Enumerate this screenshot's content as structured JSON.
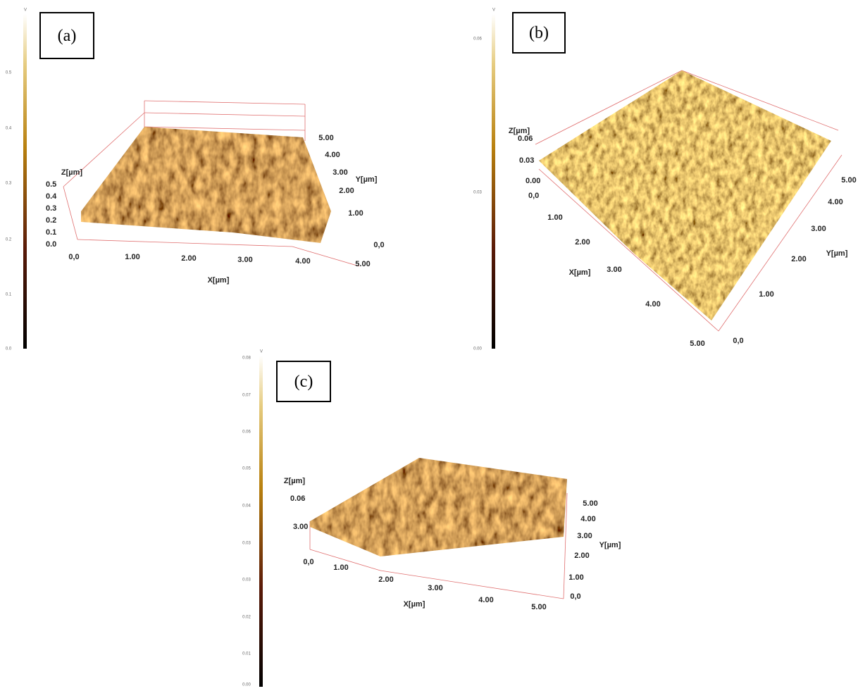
{
  "panels": [
    {
      "label": "(a)",
      "colorbar_unit": "V",
      "colorbar_ticks": [
        "0.0",
        "0.1",
        "0.2",
        "0.3",
        "0.4",
        "0.5"
      ],
      "z_title": "Z[µm]",
      "z_ticks": [
        "0.5",
        "0.4",
        "0.3",
        "0.2",
        "0.1",
        "0.0"
      ],
      "x_title": "X[µm]",
      "x_ticks": [
        "0,0",
        "1.00",
        "2.00",
        "3.00",
        "4.00",
        "5.00"
      ],
      "y_title": "Y[µm]",
      "y_ticks": [
        "0,0",
        "1.00",
        "2.00",
        "3.00",
        "4.00",
        "5.00"
      ]
    },
    {
      "label": "(b)",
      "colorbar_unit": "V",
      "colorbar_ticks": [
        "0.06",
        "0.03",
        "0.00"
      ],
      "z_title": "Z[µm]",
      "z_ticks": [
        "0.06",
        "0.03",
        "0.00",
        "0,0"
      ],
      "x_title": "X[µm]",
      "x_ticks": [
        "1.00",
        "2.00",
        "3.00",
        "4.00",
        "5.00"
      ],
      "y_title": "Y[µm]",
      "y_ticks": [
        "0,0",
        "1.00",
        "2.00",
        "3.00",
        "4.00",
        "5.00"
      ]
    },
    {
      "label": "(c)",
      "colorbar_unit": "V",
      "colorbar_ticks": [
        "0.08",
        "0.07",
        "0.06",
        "0.05",
        "0.04",
        "0.03",
        "0.03",
        "0.02",
        "0.01",
        "0.00"
      ],
      "z_title": "Z[µm]",
      "z_ticks": [
        "0.06",
        "3.00"
      ],
      "x_title": "X[µm]",
      "x_ticks": [
        "0,0",
        "1.00",
        "2.00",
        "3.00",
        "4.00",
        "5.00"
      ],
      "y_title": "Y[µm]",
      "y_ticks": [
        "0,0",
        "1.00",
        "2.00",
        "3.00",
        "4.00",
        "5.00"
      ]
    }
  ]
}
